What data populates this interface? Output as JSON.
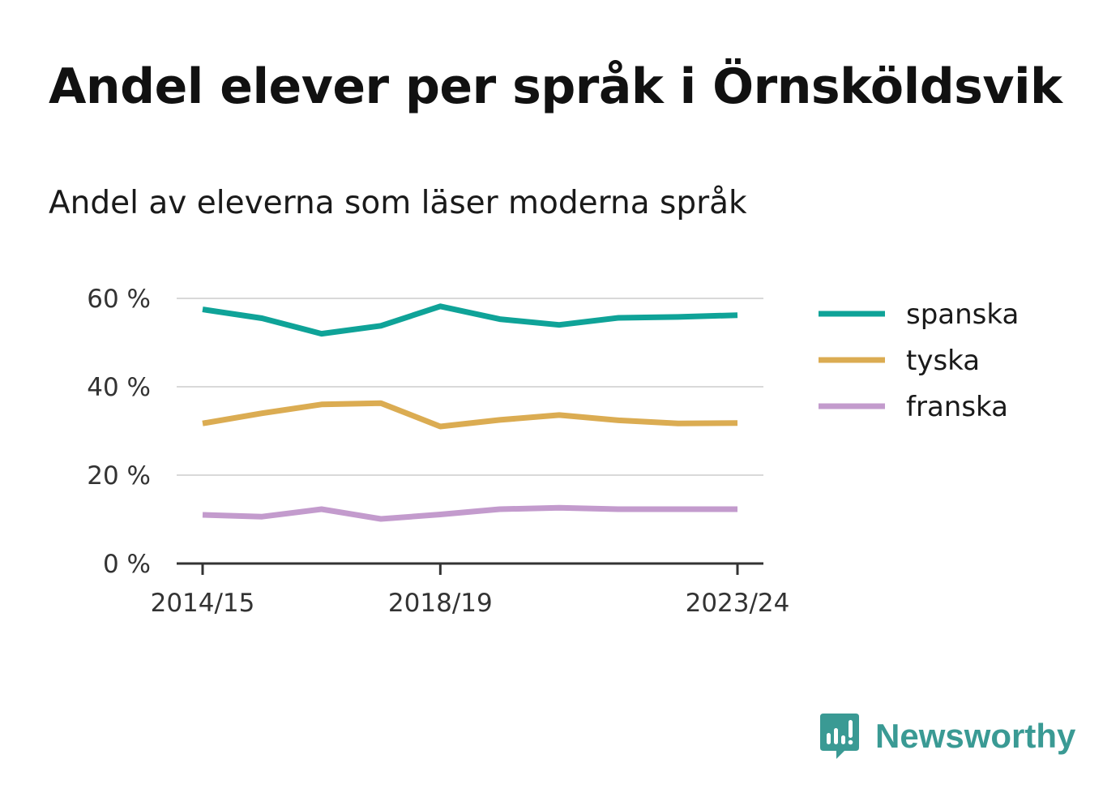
{
  "header": {
    "title": "Andel elever per språk i Örnsköldsvik",
    "subtitle": "Andel av eleverna som läser moderna språk"
  },
  "chart_data": {
    "type": "line",
    "x": [
      "2014/15",
      "2015/16",
      "2016/17",
      "2017/18",
      "2018/19",
      "2019/20",
      "2020/21",
      "2021/22",
      "2022/23",
      "2023/24"
    ],
    "x_tick_labels": [
      "2014/15",
      "2018/19",
      "2023/24"
    ],
    "y_ticks": [
      0,
      20,
      40,
      60
    ],
    "y_tick_labels": [
      "0 %",
      "20 %",
      "40 %",
      "60 %"
    ],
    "ylim": [
      0,
      60
    ],
    "grid": true,
    "legend": "right",
    "series": [
      {
        "name": "spanska",
        "color": "#0fa398",
        "values": [
          57.5,
          55.5,
          52.0,
          53.8,
          58.2,
          55.3,
          54.0,
          55.6,
          55.8,
          56.2
        ]
      },
      {
        "name": "tyska",
        "color": "#dbac52",
        "values": [
          31.7,
          34.0,
          36.0,
          36.3,
          31.0,
          32.5,
          33.6,
          32.4,
          31.7,
          31.8
        ]
      },
      {
        "name": "franska",
        "color": "#c39bcd",
        "values": [
          11.0,
          10.6,
          12.3,
          10.1,
          11.1,
          12.3,
          12.6,
          12.3,
          12.3,
          12.3
        ]
      }
    ]
  },
  "branding": {
    "name": "Newsworthy",
    "icon": "newsworthy-logo-icon",
    "color": "#3a9a94"
  }
}
